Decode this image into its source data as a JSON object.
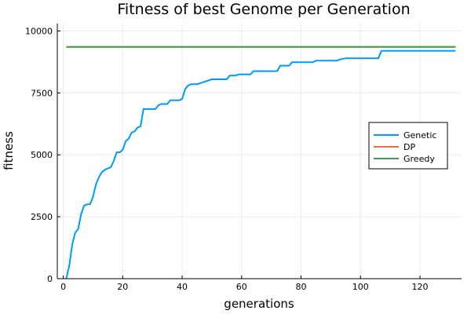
{
  "chart_data": {
    "type": "line",
    "title": "Fitness of best Genome per Generation",
    "xlabel": "generations",
    "ylabel": "fitness",
    "xlim": [
      -2,
      134
    ],
    "ylim": [
      0,
      10300
    ],
    "xticks": [
      0,
      20,
      40,
      60,
      80,
      100,
      120
    ],
    "yticks": [
      0,
      2500,
      5000,
      7500,
      10000
    ],
    "ytick_labels": [
      "0",
      "2500",
      "5000",
      "7500",
      "10000"
    ],
    "grid": true,
    "legend_position": "right",
    "series": [
      {
        "name": "Genetic",
        "color": "#009AF9",
        "x": [
          1,
          2,
          3,
          4,
          5,
          6,
          7,
          8,
          9,
          10,
          11,
          12,
          13,
          14,
          15,
          16,
          17,
          18,
          19,
          20,
          21,
          22,
          23,
          24,
          25,
          26,
          27,
          28,
          29,
          30,
          31,
          32,
          33,
          34,
          35,
          36,
          37,
          38,
          39,
          40,
          41,
          42,
          43,
          44,
          45,
          50,
          51,
          55,
          56,
          58,
          59,
          63,
          64,
          72,
          73,
          76,
          77,
          84,
          85,
          92,
          93,
          95,
          96,
          106,
          107,
          132
        ],
        "y": [
          0,
          500,
          1350,
          1850,
          2000,
          2600,
          2950,
          3000,
          3000,
          3300,
          3800,
          4100,
          4300,
          4400,
          4450,
          4500,
          4750,
          5100,
          5100,
          5200,
          5550,
          5650,
          5900,
          5950,
          6100,
          6150,
          6850,
          6850,
          6850,
          6850,
          6850,
          7000,
          7050,
          7050,
          7050,
          7200,
          7200,
          7200,
          7200,
          7250,
          7650,
          7800,
          7850,
          7850,
          7850,
          8050,
          8050,
          8050,
          8200,
          8200,
          8250,
          8250,
          8380,
          8380,
          8600,
          8600,
          8740,
          8740,
          8800,
          8800,
          8850,
          8900,
          8900,
          8900,
          9200,
          9200
        ]
      },
      {
        "name": "DP",
        "color": "#E26F46",
        "x": [
          1,
          132
        ],
        "y": [
          9360,
          9360
        ]
      },
      {
        "name": "Greedy",
        "color": "#3DA44D",
        "x": [
          1,
          132
        ],
        "y": [
          9360,
          9360
        ]
      }
    ]
  }
}
